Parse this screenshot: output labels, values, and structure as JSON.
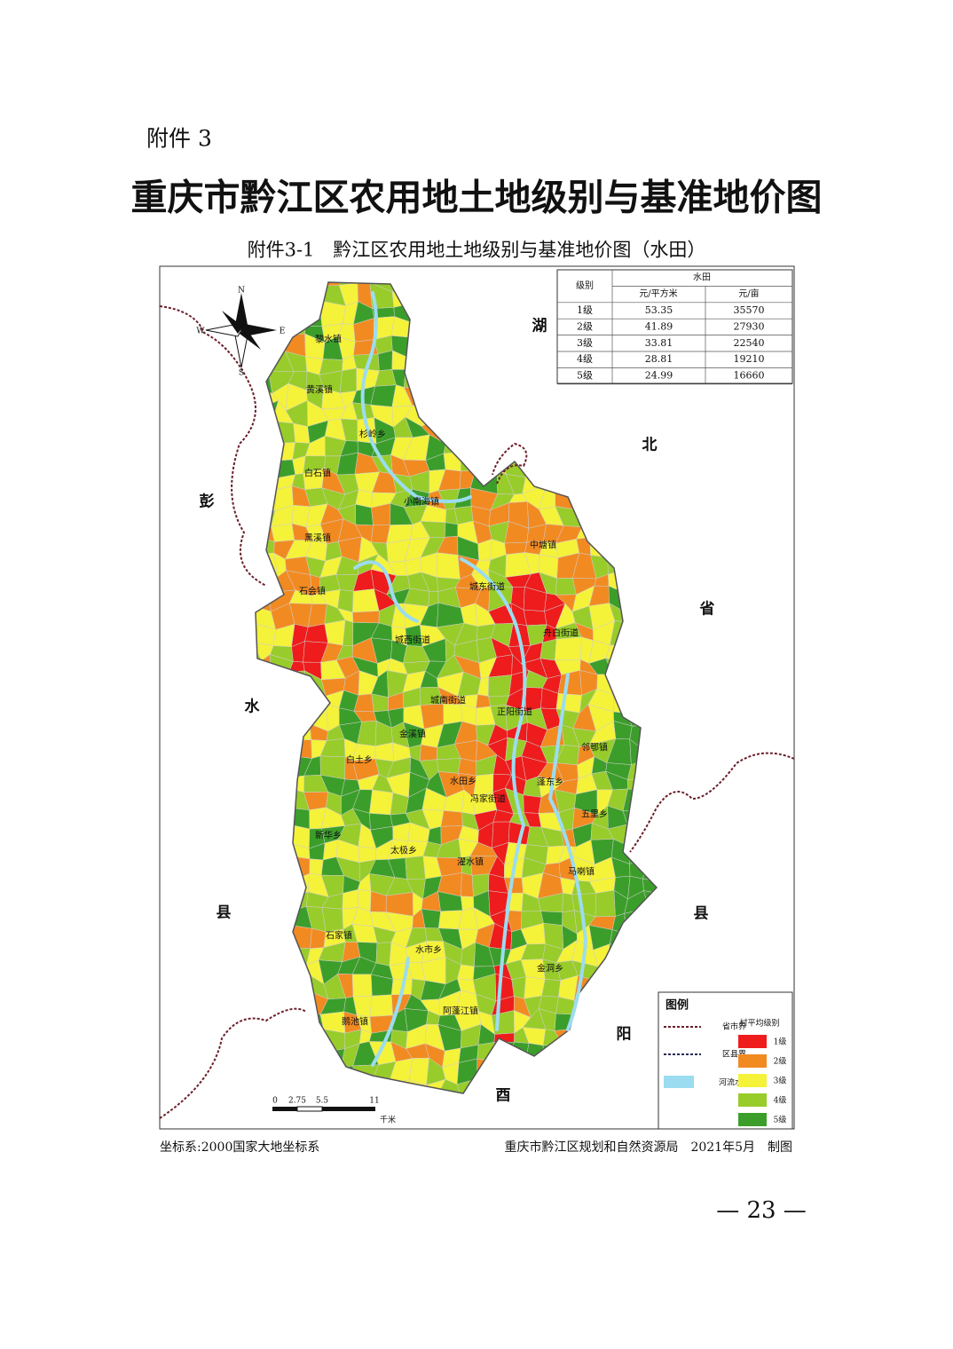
{
  "header": {
    "attachment": "附件 3",
    "title": "重庆市黔江区农用地土地级别与基准地价图",
    "subtitle": "附件3-1　黔江区农用地土地级别与基准地价图（水田）"
  },
  "table": {
    "headers": [
      "级别",
      "水田",
      "元/平方米",
      "元/亩"
    ],
    "rows": [
      [
        "1级",
        53.35,
        35570
      ],
      [
        "2级",
        41.89,
        27930
      ],
      [
        "3级",
        33.81,
        22540
      ],
      [
        "4级",
        28.81,
        19210
      ],
      [
        "5级",
        24.99,
        16660
      ]
    ]
  },
  "compass": [
    "N",
    "S",
    "E",
    "W"
  ],
  "neighbors": [
    "湖",
    "北",
    "省",
    "彭",
    "水",
    "县",
    "县",
    "阳",
    "酉"
  ],
  "towns": [
    "黎水镇",
    "黄溪镇",
    "杉岭乡",
    "白石镇",
    "小南海镇",
    "黑溪镇",
    "中塘镇",
    "石会镇",
    "城东街道",
    "舟白街道",
    "城西街道",
    "城南街道",
    "正阳街道",
    "金溪镇",
    "白土乡",
    "邻鄂镇",
    "水田乡",
    "冯家街道",
    "蓬东乡",
    "五里乡",
    "新华乡",
    "太极乡",
    "濯水镇",
    "马喇镇",
    "石家镇",
    "水市乡",
    "金洞乡",
    "阿蓬江镇",
    "鹅池镇"
  ],
  "scale": {
    "ticks": [
      "0",
      "2.75",
      "5.5",
      "11"
    ],
    "unit": "千米"
  },
  "legend": {
    "title": "图例",
    "lines": [
      "省市界",
      "区县界",
      "河流水系"
    ],
    "grade_title": "村平均级别",
    "grades": [
      {
        "label": "1级",
        "color": "#ee1c1c"
      },
      {
        "label": "2级",
        "color": "#f28a22"
      },
      {
        "label": "3级",
        "color": "#f5f23a"
      },
      {
        "label": "4级",
        "color": "#98cc2a"
      },
      {
        "label": "5级",
        "color": "#3c9e2a"
      }
    ]
  },
  "footer": {
    "crs": "坐标系:2000国家大地坐标系",
    "maker": "重庆市黔江区规划和自然资源局　2021年5月　制图",
    "page": "— 23 —"
  }
}
